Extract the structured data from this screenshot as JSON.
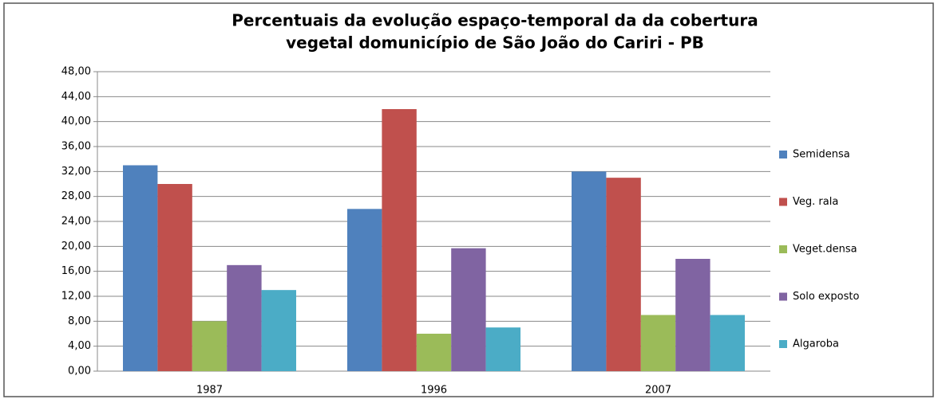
{
  "chart_data": {
    "type": "bar",
    "title": [
      "Percentuais da evolução espaço-temporal da da cobertura",
      "vegetal domunicípio de São João do Cariri - PB"
    ],
    "categories": [
      "1987",
      "1996",
      "2007"
    ],
    "series": [
      {
        "name": "Semidensa",
        "color": "#4f81bd",
        "values": [
          33,
          26,
          32
        ]
      },
      {
        "name": "Veg. rala",
        "color": "#c0504d",
        "values": [
          30,
          42,
          31
        ]
      },
      {
        "name": "Veget.densa",
        "color": "#9bbb59",
        "values": [
          8,
          6,
          9
        ]
      },
      {
        "name": "Solo exposto",
        "color": "#8064a2",
        "values": [
          17,
          19.7,
          18
        ]
      },
      {
        "name": "Algaroba",
        "color": "#4bacc6",
        "values": [
          13,
          7,
          9
        ]
      }
    ],
    "ylim": [
      0,
      48
    ],
    "yticks": [
      {
        "value": 0,
        "label": "0,00"
      },
      {
        "value": 4,
        "label": "4,00"
      },
      {
        "value": 8,
        "label": "8,00"
      },
      {
        "value": 12,
        "label": "12,00"
      },
      {
        "value": 16,
        "label": "16,00"
      },
      {
        "value": 20,
        "label": "20,00"
      },
      {
        "value": 24,
        "label": "24,00"
      },
      {
        "value": 28,
        "label": "28,00"
      },
      {
        "value": 32,
        "label": "32,00"
      },
      {
        "value": 36,
        "label": "36,00"
      },
      {
        "value": 40,
        "label": "40,00"
      },
      {
        "value": 44,
        "label": "44,00"
      },
      {
        "value": 48,
        "label": "48,00"
      }
    ],
    "grid": true,
    "legend": "right"
  }
}
